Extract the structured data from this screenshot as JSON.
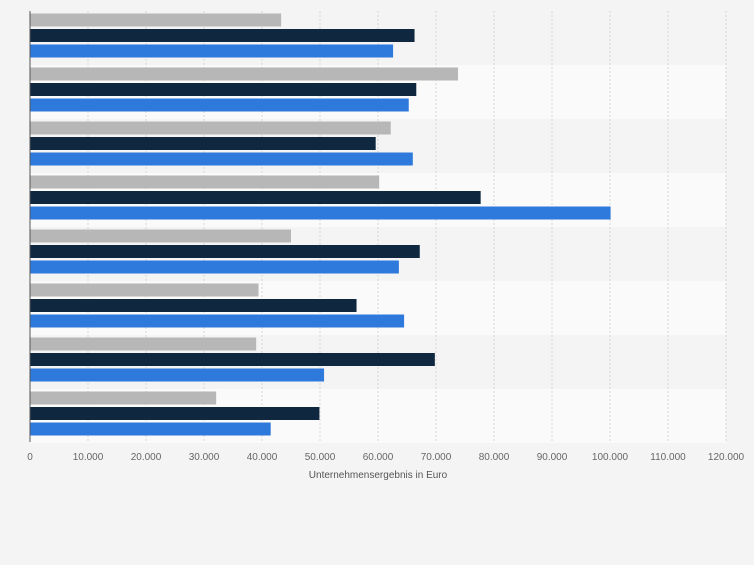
{
  "chart_data": {
    "type": "bar",
    "orientation": "horizontal",
    "categories": [
      "",
      "",
      "",
      "",
      "",
      "",
      "",
      ""
    ],
    "series": [
      {
        "values": [
          43300,
          73800,
          62200,
          60200,
          45000,
          39400,
          39000,
          32100
        ]
      },
      {
        "values": [
          66300,
          66600,
          59600,
          77700,
          67200,
          56300,
          69800,
          49900
        ]
      },
      {
        "values": [
          62600,
          65300,
          66000,
          100100,
          63600,
          64500,
          50700,
          41500
        ]
      }
    ],
    "colors": [
      "#b7b7b7",
      "#0f2840",
      "#2d79dc"
    ],
    "xlabel": "Unternehmensergebnis in Euro",
    "xlim": [
      0,
      120000
    ],
    "x_ticks": [
      0,
      10000,
      20000,
      30000,
      40000,
      50000,
      60000,
      70000,
      80000,
      90000,
      100000,
      110000,
      120000
    ],
    "x_tick_labels": [
      "0",
      "10.000",
      "20.000",
      "30.000",
      "40.000",
      "50.000",
      "60.000",
      "70.000",
      "80.000",
      "90.000",
      "100.000",
      "110.000",
      "120.000"
    ],
    "grid": true,
    "legend": "none"
  }
}
